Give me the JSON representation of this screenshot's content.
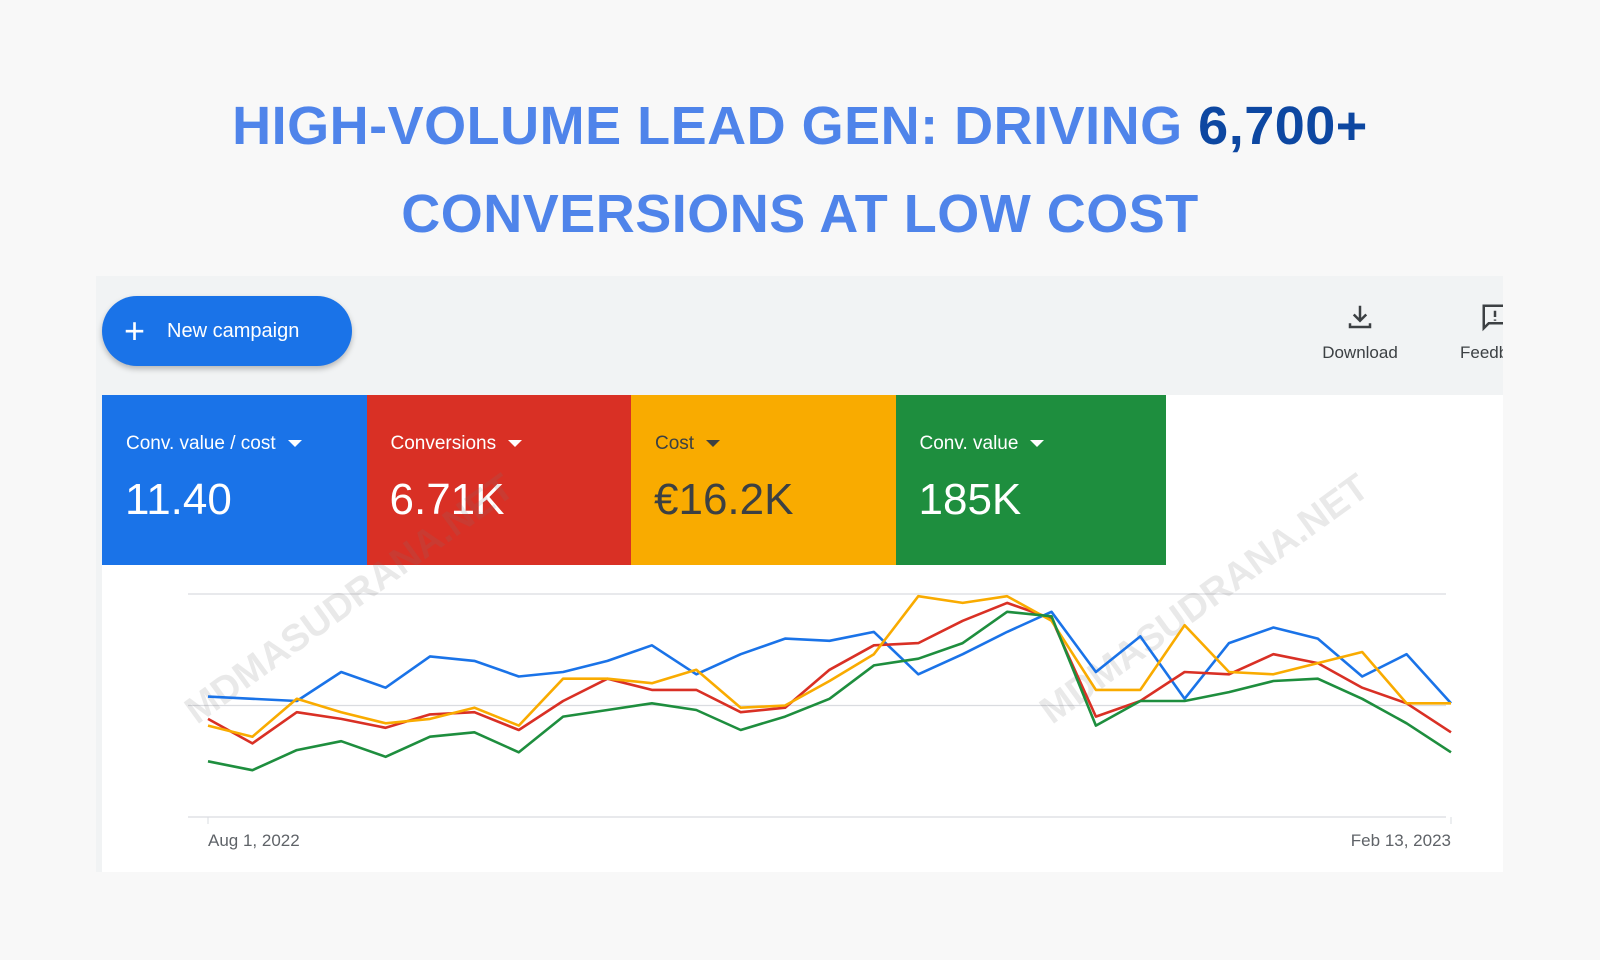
{
  "header": {
    "title_part1": "HIGH-VOLUME LEAD GEN: DRIVING ",
    "title_highlight": "6,700+",
    "title_line2": "CONVERSIONS AT LOW COST"
  },
  "toolbar": {
    "new_campaign": "New campaign",
    "download": "Download",
    "feedback": "Feedback"
  },
  "metrics": [
    {
      "label": "Conv. value / cost",
      "value": "11.40",
      "color": "#1a73e8"
    },
    {
      "label": "Conversions",
      "value": "6.71K",
      "color": "#d93025"
    },
    {
      "label": "Cost",
      "value": "€16.2K",
      "color": "#f9ab00"
    },
    {
      "label": "Conv. value",
      "value": "185K",
      "color": "#1e8e3e"
    }
  ],
  "watermark": "MDMASUDRANA.NET",
  "chart_data": {
    "type": "line",
    "categories": [
      "Aug 1, 2022",
      null,
      null,
      null,
      null,
      null,
      null,
      null,
      null,
      null,
      null,
      null,
      null,
      null,
      null,
      null,
      null,
      null,
      null,
      null,
      null,
      null,
      null,
      null,
      null,
      null,
      null,
      null,
      "Feb 13, 2023"
    ],
    "ylim": [
      0,
      100
    ],
    "series": [
      {
        "color": "#1a73e8",
        "values": [
          54,
          53,
          52,
          65,
          58,
          72,
          70,
          63,
          65,
          70,
          77,
          64,
          73,
          80,
          79,
          83,
          64,
          73,
          83,
          92,
          65,
          81,
          53,
          78,
          85,
          80,
          63,
          73,
          51
        ]
      },
      {
        "color": "#d93025",
        "values": [
          44,
          33,
          47,
          44,
          40,
          46,
          47,
          39,
          52,
          62,
          57,
          57,
          47,
          49,
          66,
          77,
          78,
          88,
          96,
          89,
          45,
          52,
          65,
          64,
          73,
          69,
          58,
          51,
          38
        ]
      },
      {
        "color": "#f9ab00",
        "values": [
          41,
          36,
          53,
          47,
          42,
          44,
          49,
          41,
          62,
          62,
          60,
          66,
          49,
          50,
          61,
          73,
          99,
          96,
          99,
          88,
          57,
          57,
          86,
          65,
          64,
          69,
          74,
          51,
          51
        ]
      },
      {
        "color": "#1e8e3e",
        "values": [
          25,
          21,
          30,
          34,
          27,
          36,
          38,
          29,
          45,
          48,
          51,
          48,
          39,
          45,
          53,
          68,
          71,
          78,
          92,
          90,
          41,
          52,
          52,
          56,
          61,
          62,
          53,
          42,
          29
        ]
      }
    ]
  }
}
